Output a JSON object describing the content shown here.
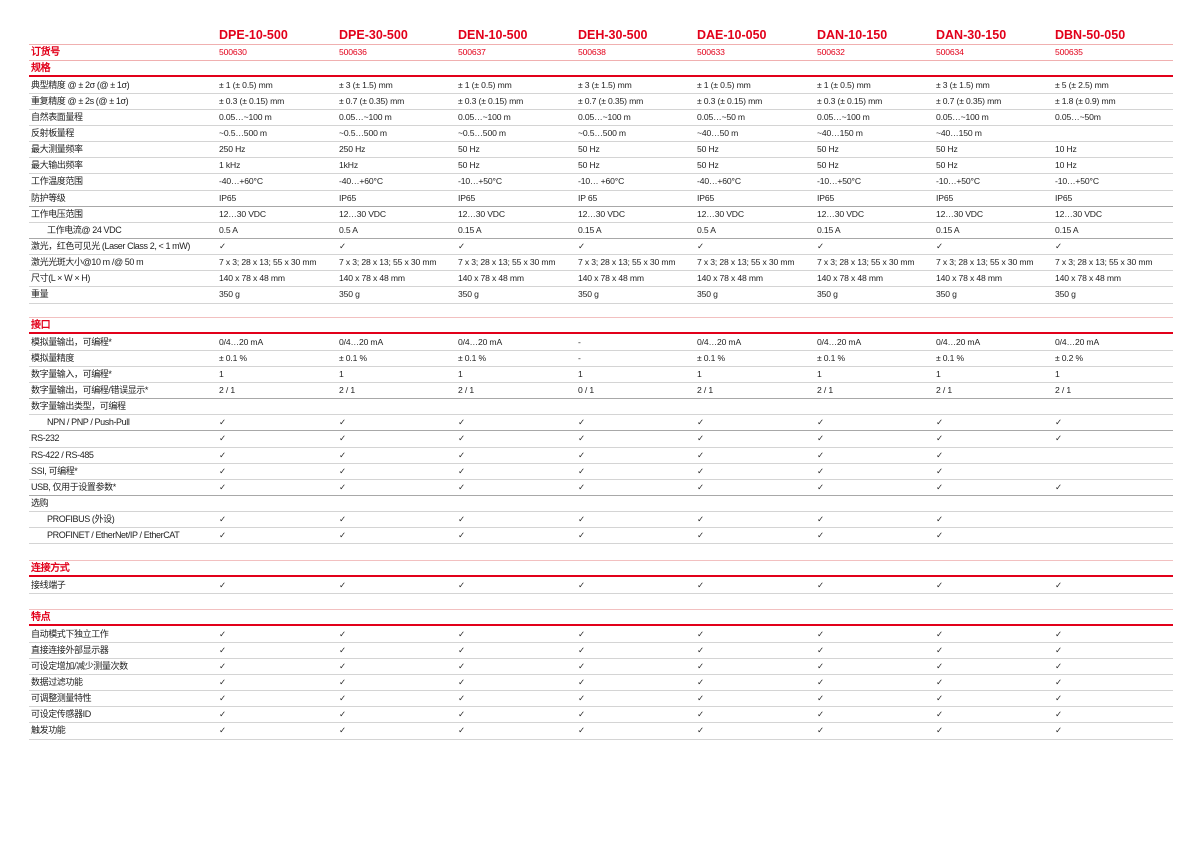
{
  "models": [
    "DPE-10-500",
    "DPE-30-500",
    "DEN-10-500",
    "DEH-30-500",
    "DAE-10-050",
    "DAN-10-150",
    "DAN-30-150",
    "DBN-50-050"
  ],
  "order": {
    "label": "订货号",
    "values": [
      "500630",
      "500636",
      "500637",
      "500638",
      "500633",
      "500632",
      "500634",
      "500635"
    ]
  },
  "sections": [
    {
      "title": "规格",
      "rows": [
        {
          "label": "典型精度 @ ± 2σ (@ ± 1σ)",
          "values": [
            "± 1 (± 0.5) mm",
            "± 3 (± 1.5) mm",
            "± 1 (± 0.5) mm",
            "± 3 (± 1.5) mm",
            "± 1 (± 0.5) mm",
            "± 1 (± 0.5) mm",
            "± 3 (± 1.5) mm",
            "± 5 (± 2.5) mm"
          ]
        },
        {
          "label": "重复精度 @ ± 2s (@ ± 1σ)",
          "values": [
            "± 0.3 (± 0.15) mm",
            "± 0.7 (± 0.35) mm",
            "± 0.3 (± 0.15) mm",
            "± 0.7 (± 0.35) mm",
            "± 0.3 (± 0.15) mm",
            "± 0.3 (± 0.15) mm",
            "± 0.7 (± 0.35) mm",
            "± 1.8 (± 0.9) mm"
          ]
        },
        {
          "label": "自然表面量程",
          "values": [
            "0.05…~100 m",
            "0.05…~100 m",
            "0.05…~100 m",
            "0.05…~100 m",
            "0.05…~50 m",
            "0.05…~100 m",
            "0.05…~100 m",
            "0.05…~50m"
          ]
        },
        {
          "label": "反射板量程",
          "values": [
            " ~0.5…500 m",
            " ~0.5…500 m",
            " ~0.5…500 m",
            " ~0.5…500 m",
            "~40…50 m",
            "~40…150 m",
            "~40…150 m",
            ""
          ]
        },
        {
          "label": "最大测量频率",
          "values": [
            "250 Hz",
            "250 Hz",
            "50 Hz",
            "50 Hz",
            "50 Hz",
            "50 Hz",
            "50 Hz",
            "10 Hz"
          ]
        },
        {
          "label": "最大输出频率",
          "values": [
            "1 kHz",
            "1kHz",
            "50 Hz",
            "50 Hz",
            "50 Hz",
            "50 Hz",
            "50 Hz",
            "10 Hz"
          ]
        },
        {
          "label": "工作温度范围",
          "values": [
            "-40…+60°C",
            "-40…+60°C",
            "-10…+50°C",
            "-10… +60°C",
            "-40…+60°C",
            "-10…+50°C",
            "-10…+50°C",
            "-10…+50°C"
          ]
        },
        {
          "label": "防护等级",
          "thick": true,
          "values": [
            "IP65",
            "IP65",
            "IP65",
            "IP 65",
            "IP65",
            "IP65",
            "IP65",
            "IP65"
          ]
        },
        {
          "label": "工作电压范围",
          "values": [
            "12…30 VDC",
            "12…30 VDC",
            "12…30 VDC",
            "12…30 VDC",
            "12…30 VDC",
            "12…30 VDC",
            "12…30 VDC",
            "12…30 VDC"
          ]
        },
        {
          "label": "工作电流@ 24 VDC",
          "indent": true,
          "thick": true,
          "values": [
            "0.5 A",
            "0.5 A",
            "0.15 A",
            "0.15 A",
            "0.5 A",
            "0.15 A",
            "0.15 A",
            "0.15 A"
          ]
        },
        {
          "label": "激光，红色可见光 (Laser Class 2, < 1 mW)",
          "values": [
            "✓",
            "✓",
            "✓",
            "✓",
            "✓",
            "✓",
            "✓",
            "✓"
          ]
        },
        {
          "label": "激光光斑大小@10 m /@ 50 m",
          "values": [
            "7 x 3; 28 x 13; 55 x 30 mm",
            "7 x 3; 28 x 13; 55 x 30 mm",
            "7 x 3; 28 x 13; 55 x 30 mm",
            "7 x 3; 28 x 13; 55 x 30 mm",
            "7 x 3; 28 x 13; 55 x 30 mm",
            "7 x 3; 28 x 13; 55 x 30 mm",
            "7 x 3; 28 x 13; 55 x 30 mm",
            "7 x 3; 28 x 13; 55 x 30 mm"
          ]
        },
        {
          "label": "尺寸(L × W × H)",
          "values": [
            "140 x 78 x 48 mm",
            "140 x 78 x 48 mm",
            "140 x 78 x 48 mm",
            "140 x 78 x 48 mm",
            "140 x 78 x 48 mm",
            "140 x 78 x 48 mm",
            "140 x 78 x 48 mm",
            "140 x 78 x 48 mm"
          ]
        },
        {
          "label": "重量",
          "values": [
            "350 g",
            "350 g",
            "350 g",
            "350 g",
            "350 g",
            "350 g",
            "350 g",
            "350 g"
          ]
        }
      ]
    },
    {
      "title": "接口",
      "rows": [
        {
          "label": "模拟量输出，可编程*",
          "values": [
            "0/4…20 mA",
            "0/4…20 mA",
            "0/4…20 mA",
            "-",
            "0/4…20 mA",
            "0/4…20 mA",
            "0/4…20 mA",
            "0/4…20 mA"
          ]
        },
        {
          "label": "模拟量精度",
          "values": [
            "± 0.1 %",
            "± 0.1 %",
            "± 0.1 %",
            "-",
            "± 0.1 %",
            "± 0.1 %",
            "± 0.1 %",
            "± 0.2 %"
          ]
        },
        {
          "label": "数字量输入，可编程*",
          "values": [
            "1",
            "1",
            "1",
            "1",
            "1",
            "1",
            "1",
            "1"
          ]
        },
        {
          "label": "数字量输出，可编程/错误显示*",
          "thick": true,
          "values": [
            "2 / 1",
            "2 / 1",
            "2 / 1",
            "0 / 1",
            "2 / 1",
            "2 / 1",
            "2 / 1",
            "2 / 1"
          ]
        },
        {
          "label": "数字量输出类型，可编程",
          "values": [
            "",
            "",
            "",
            "",
            "",
            "",
            "",
            ""
          ]
        },
        {
          "label": "NPN / PNP / Push-Pull",
          "indent": true,
          "thick": true,
          "values": [
            "✓",
            "✓",
            "✓",
            "✓",
            "✓",
            "✓",
            "✓",
            "✓"
          ]
        },
        {
          "label": "RS-232",
          "values": [
            "✓",
            "✓",
            "✓",
            "✓",
            "✓",
            "✓",
            "✓",
            "✓"
          ]
        },
        {
          "label": "RS-422 / RS-485",
          "values": [
            "✓",
            "✓",
            "✓",
            "✓",
            "✓",
            "✓",
            "✓",
            ""
          ]
        },
        {
          "label": "SSI, 可编程*",
          "values": [
            "✓",
            "✓",
            "✓",
            "✓",
            "✓",
            "✓",
            "✓",
            ""
          ]
        },
        {
          "label": "USB, 仅用于设置参数*",
          "thick": true,
          "values": [
            "✓",
            "✓",
            "✓",
            "✓",
            "✓",
            "✓",
            "✓",
            "✓"
          ]
        },
        {
          "label": "选购",
          "values": [
            "",
            "",
            "",
            "",
            "",
            "",
            "",
            ""
          ]
        },
        {
          "label": "PROFIBUS (外设)",
          "indent": true,
          "values": [
            "✓",
            "✓",
            "✓",
            "✓",
            "✓",
            "✓",
            "✓",
            ""
          ]
        },
        {
          "label": "PROFINET / EtherNet/IP / EtherCAT",
          "indent": true,
          "values": [
            "✓",
            "✓",
            "✓",
            "✓",
            "✓",
            "✓",
            "✓",
            ""
          ]
        }
      ]
    },
    {
      "title": "连接方式",
      "rows": [
        {
          "label": "接线端子",
          "values": [
            "✓",
            "✓",
            "✓",
            "✓",
            "✓",
            "✓",
            "✓",
            "✓"
          ]
        }
      ]
    },
    {
      "title": "特点",
      "rows": [
        {
          "label": "自动模式下独立工作",
          "values": [
            "✓",
            "✓",
            "✓",
            "✓",
            "✓",
            "✓",
            "✓",
            "✓"
          ]
        },
        {
          "label": "直接连接外部显示器",
          "values": [
            "✓",
            "✓",
            "✓",
            "✓",
            "✓",
            "✓",
            "✓",
            "✓"
          ]
        },
        {
          "label": "可设定增加/减少测量次数",
          "values": [
            "✓",
            "✓",
            "✓",
            "✓",
            "✓",
            "✓",
            "✓",
            "✓"
          ]
        },
        {
          "label": "数据过滤功能",
          "values": [
            "✓",
            "✓",
            "✓",
            "✓",
            "✓",
            "✓",
            "✓",
            "✓"
          ]
        },
        {
          "label": "可调整测量特性",
          "values": [
            "✓",
            "✓",
            "✓",
            "✓",
            "✓",
            "✓",
            "✓",
            "✓"
          ]
        },
        {
          "label": "可设定传感器ID",
          "values": [
            "✓",
            "✓",
            "✓",
            "✓",
            "✓",
            "✓",
            "✓",
            "✓"
          ]
        },
        {
          "label": "触发功能",
          "values": [
            "✓",
            "✓",
            "✓",
            "✓",
            "✓",
            "✓",
            "✓",
            "✓"
          ]
        }
      ]
    }
  ],
  "colors": {
    "accent": "#e2001a"
  }
}
